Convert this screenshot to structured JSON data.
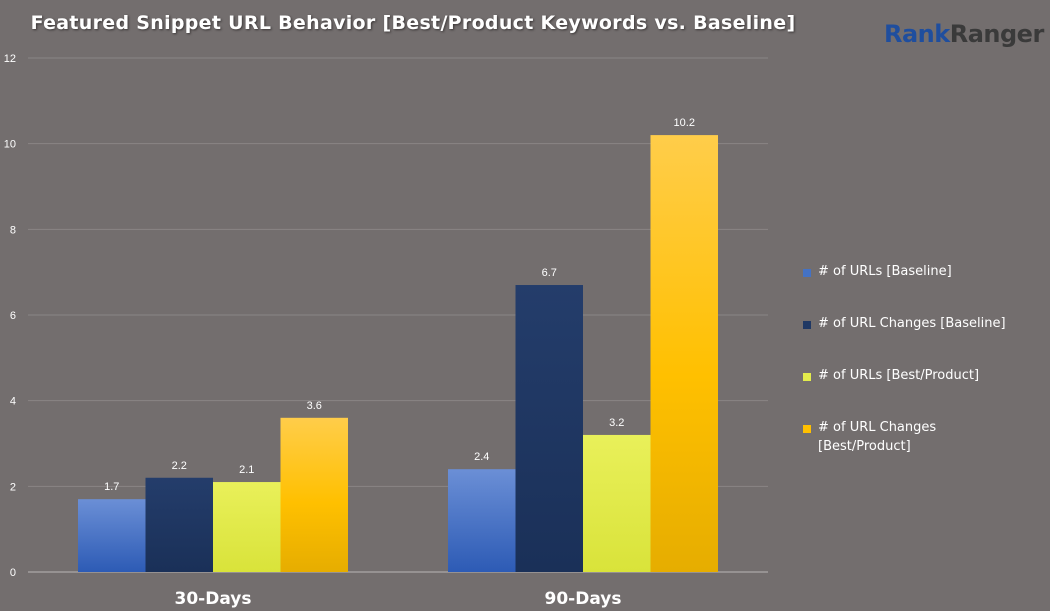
{
  "logo": {
    "part1": "Rank",
    "part2": "Ranger"
  },
  "chart_data": {
    "type": "bar",
    "title": "Featured Snippet URL Behavior [Best/Product Keywords vs. Baseline]",
    "categories": [
      "30-Days",
      "90-Days"
    ],
    "series": [
      {
        "name": "# of URLs [Baseline]",
        "values": [
          1.7,
          2.4
        ],
        "color": "#4472c4"
      },
      {
        "name": "# of URL Changes [Baseline]",
        "values": [
          2.2,
          6.7
        ],
        "color": "#1f3864"
      },
      {
        "name": "# of URLs [Best/Product]",
        "values": [
          2.1,
          3.2
        ],
        "color": "#e3ec4c"
      },
      {
        "name": "# of URL Changes [Best/Product]",
        "values": [
          3.6,
          10.2
        ],
        "color": "#ffc000"
      }
    ],
    "yticks": [
      0,
      2,
      4,
      6,
      8,
      10,
      12
    ],
    "ylim": [
      0,
      12
    ],
    "grid": true,
    "legend_position": "right",
    "data_labels": true
  }
}
